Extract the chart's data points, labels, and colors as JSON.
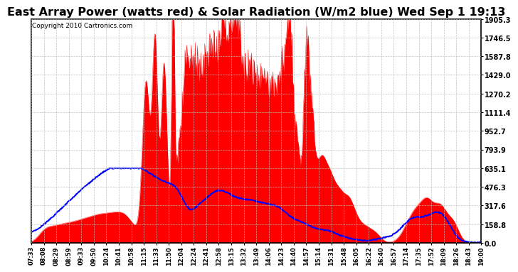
{
  "title": "East Array Power (watts red) & Solar Radiation (W/m2 blue) Wed Sep 1 19:13",
  "copyright": "Copyright 2010 Cartronics.com",
  "ytick_values": [
    0.0,
    158.8,
    317.6,
    476.3,
    635.1,
    793.9,
    952.7,
    1111.4,
    1270.2,
    1429.0,
    1587.8,
    1746.5,
    1905.3
  ],
  "ymax": 1905.3,
  "ymin": 0.0,
  "background_color": "#ffffff",
  "grid_color": "#bbbbbb",
  "red_color": "#ff0000",
  "blue_color": "#0000ff",
  "title_fontsize": 11.5,
  "copyright_fontsize": 6.5,
  "x_labels": [
    "07:33",
    "08:08",
    "08:29",
    "08:59",
    "09:33",
    "09:50",
    "10:24",
    "10:41",
    "10:58",
    "11:15",
    "11:33",
    "11:50",
    "12:04",
    "12:24",
    "12:41",
    "12:58",
    "13:15",
    "13:32",
    "13:49",
    "14:06",
    "14:23",
    "14:40",
    "14:57",
    "15:14",
    "15:31",
    "15:48",
    "16:05",
    "16:22",
    "16:40",
    "16:57",
    "17:14",
    "17:35",
    "17:52",
    "18:09",
    "18:26",
    "18:43",
    "19:00"
  ],
  "n_points": 800
}
